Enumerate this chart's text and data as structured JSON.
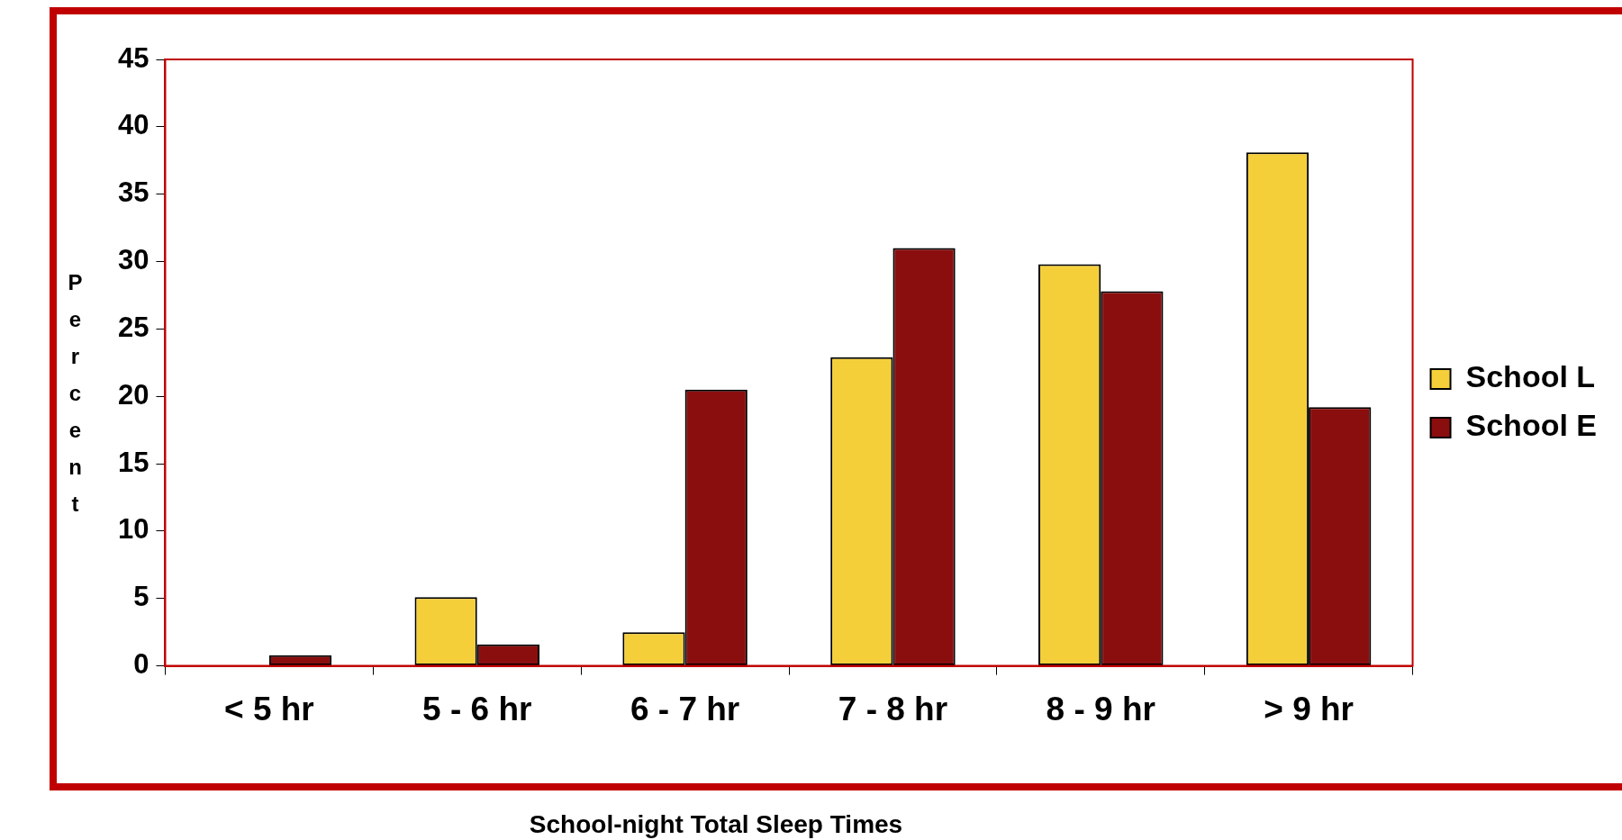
{
  "chart_data": {
    "type": "bar",
    "xlabel": "School-night Total Sleep Times",
    "ylabel": "Percent",
    "categories": [
      "< 5 hr",
      "5 - 6 hr",
      "6 - 7 hr",
      "7 - 8 hr",
      "8 - 9 hr",
      "> 9 hr"
    ],
    "series": [
      {
        "name": "School L",
        "color": "#f5cf3a",
        "values": [
          0,
          5.1,
          2.5,
          22.9,
          29.8,
          38.1
        ]
      },
      {
        "name": "School E",
        "color": "#8b0e0e",
        "values": [
          0.8,
          1.6,
          20.5,
          31.0,
          27.8,
          19.2
        ]
      }
    ],
    "ylim": [
      0,
      45
    ],
    "yticks": [
      0,
      5,
      10,
      15,
      20,
      25,
      30,
      35,
      40,
      45
    ],
    "grid": false,
    "legend": "right"
  }
}
